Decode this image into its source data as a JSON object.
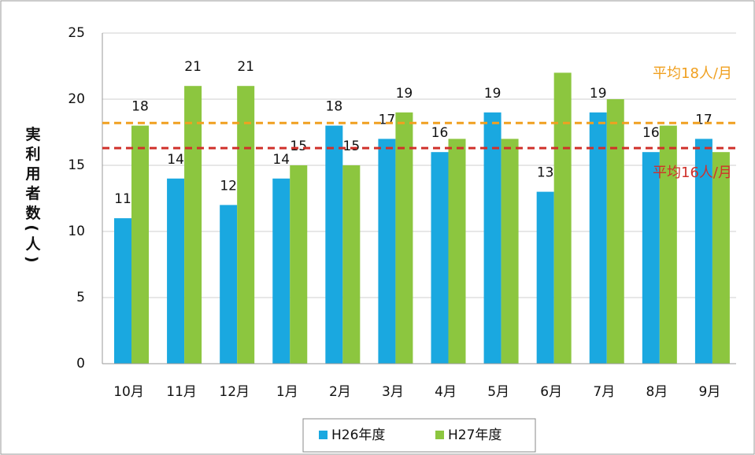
{
  "chart_data": {
    "type": "bar",
    "y_label": "実利用者数(人)",
    "categories": [
      "10月",
      "11月",
      "12月",
      "1月",
      "2月",
      "3月",
      "4月",
      "5月",
      "6月",
      "7月",
      "8月",
      "9月"
    ],
    "series": [
      {
        "name": "H26年度",
        "color": "#1aa8e0",
        "values": [
          11,
          14,
          12,
          14,
          18,
          17,
          16,
          19,
          13,
          19,
          16,
          17
        ],
        "value_labels": [
          "11",
          "14",
          "12",
          "14",
          "18",
          "17",
          "16",
          "19",
          "13",
          "19",
          "16",
          "17"
        ]
      },
      {
        "name": "H27年度",
        "color": "#8cc63f",
        "values": [
          18,
          21,
          21,
          15,
          15,
          19,
          17,
          17,
          22,
          20,
          18,
          16
        ],
        "value_labels": [
          "18",
          "21",
          "21",
          "15",
          "15",
          "19",
          null,
          null,
          null,
          null,
          null,
          null
        ]
      }
    ],
    "ylim": [
      0,
      25
    ],
    "yticks": [
      0,
      5,
      10,
      15,
      20,
      25
    ],
    "grid": true,
    "reference_lines": [
      {
        "value": 18.2,
        "label": "平均18人/月",
        "color": "#f0a020"
      },
      {
        "value": 16.3,
        "label": "平均16人/月",
        "color": "#d0302a"
      }
    ],
    "legend": "bottom"
  }
}
